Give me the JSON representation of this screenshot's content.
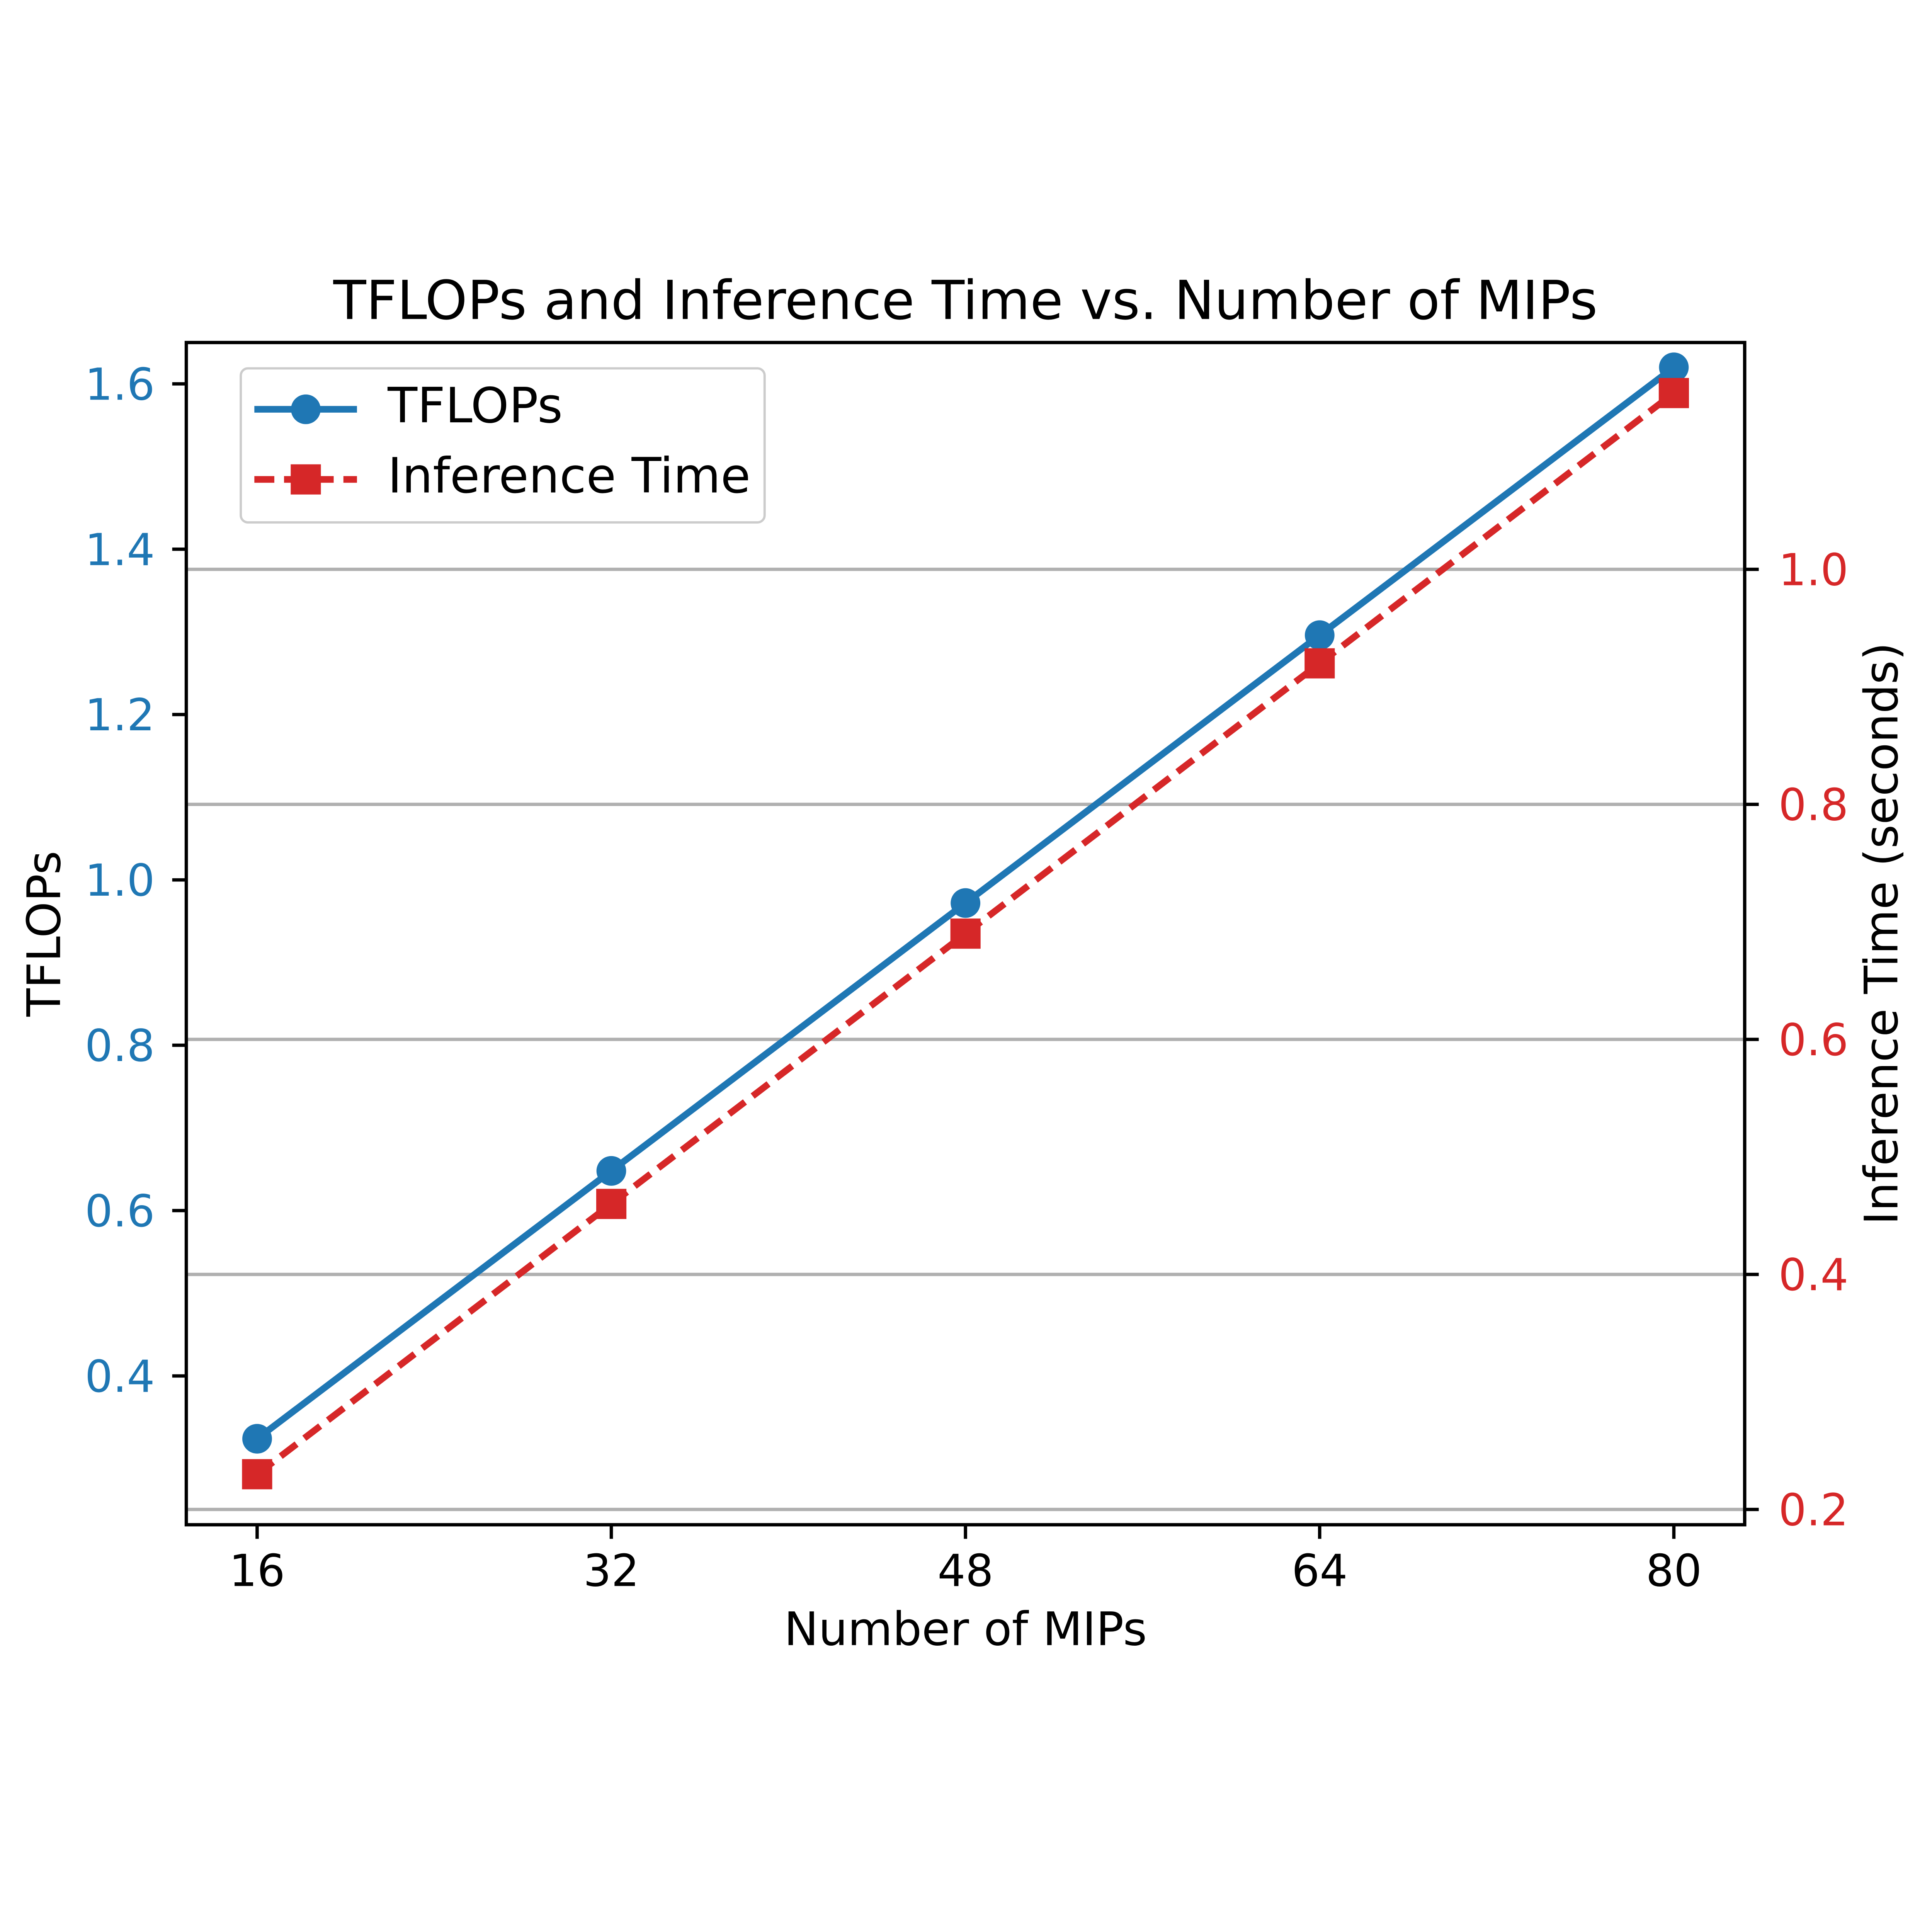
{
  "chart_data": {
    "type": "line",
    "title": "TFLOPs and Inference Time vs. Number of MIPs",
    "xlabel": "Number of MIPs",
    "ylabel_left": "TFLOPs",
    "ylabel_right": "Inference Time (seconds)",
    "x": [
      16,
      32,
      48,
      64,
      80
    ],
    "series": [
      {
        "name": "TFLOPs",
        "axis": "left",
        "color": "#1f77b4",
        "style": "solid",
        "marker": "circle",
        "values": [
          0.324,
          0.648,
          0.972,
          1.296,
          1.62
        ]
      },
      {
        "name": "Inference Time",
        "axis": "right",
        "color": "#d62728",
        "style": "dashed",
        "marker": "square",
        "values": [
          0.23,
          0.46,
          0.69,
          0.92,
          1.15
        ]
      }
    ],
    "axes": {
      "x": {
        "ticks": [
          16,
          32,
          48,
          64,
          80
        ],
        "lim": [
          12.8,
          83.2
        ],
        "tick_color": "#000000"
      },
      "left": {
        "ticks": [
          0.4,
          0.6,
          0.8,
          1.0,
          1.2,
          1.4,
          1.6
        ],
        "lim": [
          0.22,
          1.65
        ],
        "label_color": "#1f77b4"
      },
      "right": {
        "ticks": [
          0.2,
          0.4,
          0.6,
          0.8,
          1.0
        ],
        "lim": [
          0.187,
          1.193
        ],
        "label_color": "#d62728"
      }
    },
    "grid": {
      "on": true,
      "axis": "right",
      "color": "#b0b0b0"
    },
    "legend": {
      "position": "upper left",
      "entries": [
        "TFLOPs",
        "Inference Time"
      ]
    }
  }
}
